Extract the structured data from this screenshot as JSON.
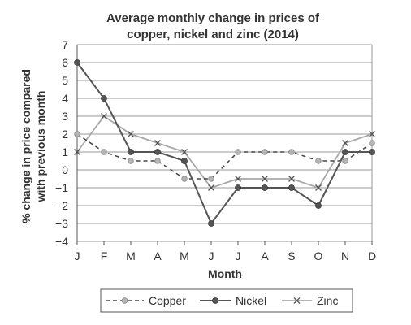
{
  "chart_data": {
    "type": "line",
    "title_line1": "Average monthly change in prices of",
    "title_line2": "copper, nickel and zinc (2014)",
    "xlabel": "Month",
    "ylabel_line1": "% change in price compared",
    "ylabel_line2": "with previous month",
    "categories": [
      "J",
      "F",
      "M",
      "A",
      "M",
      "J",
      "J",
      "A",
      "S",
      "O",
      "N",
      "D"
    ],
    "ylim": [
      -4,
      7
    ],
    "yticks": [
      "7",
      "6",
      "5",
      "4",
      "3",
      "2",
      "1",
      "0",
      "−1",
      "−2",
      "−3",
      "−4"
    ],
    "grid": true,
    "legend_position": "bottom",
    "series": [
      {
        "name": "Copper",
        "style": "dashed",
        "marker": "circle-light",
        "color": "#444444",
        "marker_color": "#b5b5b5",
        "values": [
          2,
          1,
          0.5,
          0.5,
          -0.5,
          -0.5,
          1,
          1,
          1,
          0.5,
          0.5,
          1.5
        ]
      },
      {
        "name": "Nickel",
        "style": "solid",
        "marker": "circle-dark",
        "color": "#555555",
        "marker_color": "#555555",
        "values": [
          6,
          4,
          1,
          1,
          0.5,
          -3,
          -1,
          -1,
          -1,
          -2,
          1,
          1
        ]
      },
      {
        "name": "Zinc",
        "style": "solid-light",
        "marker": "x",
        "color": "#a8a8a8",
        "marker_color": "#555555",
        "values": [
          1,
          3,
          2,
          1.5,
          1,
          -1,
          -0.5,
          -0.5,
          -0.5,
          -1,
          1.5,
          2
        ]
      }
    ]
  }
}
